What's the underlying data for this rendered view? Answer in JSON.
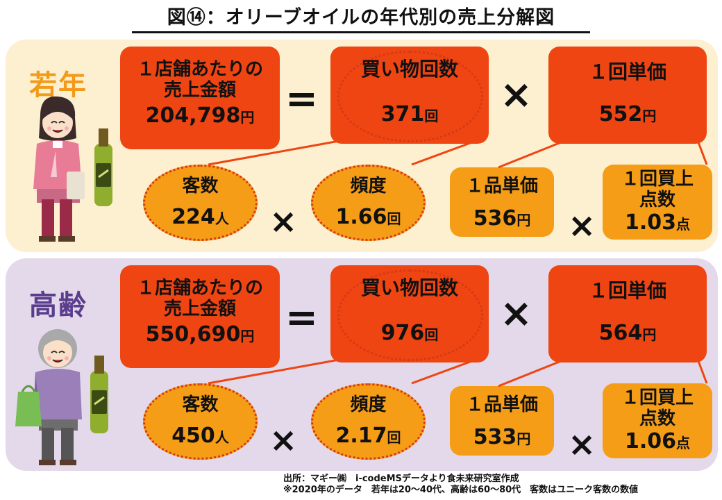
{
  "title": "図⑭：オリーブオイルの年代別の売上分解図",
  "young": {
    "label": "若年",
    "sales_label_1": "１店舗あたりの",
    "sales_label_2": "売上金額",
    "sales_value": "204,798",
    "yen": "円",
    "purchases_label": "買い物回数",
    "purchases_value": "371",
    "purchases_unit": "回",
    "unit_price_label": "１回単価",
    "unit_price_value": "552",
    "unit_price_unit": "円",
    "customers_label": "客数",
    "customers_value": "224",
    "customers_unit": "人",
    "frequency_label": "頻度",
    "frequency_value": "1.66",
    "frequency_unit": "回",
    "item_price_label": "１品単価",
    "item_price_value": "536",
    "item_price_unit": "円",
    "items_label_1": "１回買上",
    "items_label_2": "点数",
    "items_value": "1.03",
    "items_unit": "点"
  },
  "senior": {
    "label": "高齢",
    "sales_label_1": "１店舗あたりの",
    "sales_label_2": "売上金額",
    "sales_value": "550,690",
    "yen": "円",
    "purchases_label": "買い物回数",
    "purchases_value": "976",
    "purchases_unit": "回",
    "unit_price_label": "１回単価",
    "unit_price_value": "564",
    "unit_price_unit": "円",
    "customers_label": "客数",
    "customers_value": "450",
    "customers_unit": "人",
    "frequency_label": "頻度",
    "frequency_value": "2.17",
    "frequency_unit": "回",
    "item_price_label": "１品単価",
    "item_price_value": "533",
    "item_price_unit": "円",
    "items_label_1": "１回買上",
    "items_label_2": "点数",
    "items_value": "1.06",
    "items_unit": "点"
  },
  "operators": {
    "equals": "=",
    "times": "×"
  },
  "footer": {
    "line1": "出所：マギー㈱　i-codeMSデータより食未来研究室作成",
    "line2": "※2020年のデータ　若年は20～40代、高齢は60～80代　客数はユニーク客数の数値"
  },
  "colors": {
    "red_box": "#ee4512",
    "orange_box": "#f59d17",
    "young_bg": "#fdf0d0",
    "senior_bg": "#e3d9ea",
    "young_label": "#f29a1a",
    "senior_label": "#5a3d8c"
  }
}
